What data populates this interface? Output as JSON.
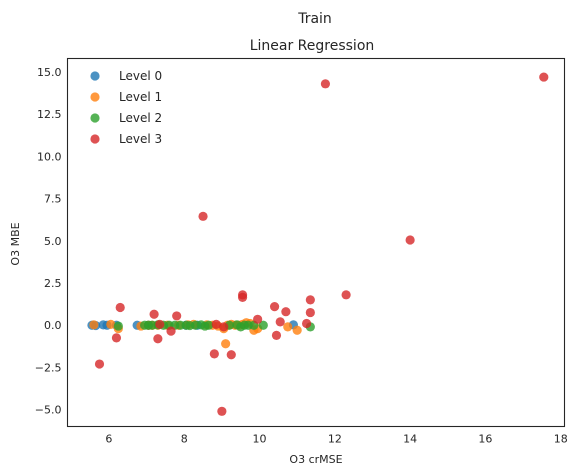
{
  "chart_data": {
    "type": "scatter",
    "suptitle": "Train",
    "title": "Linear Regression",
    "xlabel": "O3 crMSE",
    "ylabel": "O3 MBE",
    "xlim": [
      4.9,
      18.1
    ],
    "ylim": [
      -6.0,
      15.8
    ],
    "xticks": [
      6,
      8,
      10,
      12,
      14,
      16,
      18
    ],
    "yticks": [
      -5.0,
      -2.5,
      0.0,
      2.5,
      5.0,
      7.5,
      10.0,
      12.5,
      15.0
    ],
    "ytick_labels": [
      "−5.0",
      "−2.5",
      "0.0",
      "2.5",
      "5.0",
      "7.5",
      "10.0",
      "12.5",
      "15.0"
    ],
    "grid": false,
    "legend_position": "upper-left",
    "series": [
      {
        "name": "Level 0",
        "color": "#1f77b4",
        "points": [
          [
            5.55,
            0.0
          ],
          [
            5.65,
            -0.02
          ],
          [
            5.85,
            0.02
          ],
          [
            5.95,
            0.0
          ],
          [
            6.2,
            0.0
          ],
          [
            6.75,
            0.0
          ],
          [
            7.05,
            0.0
          ],
          [
            8.05,
            0.0
          ],
          [
            8.35,
            0.0
          ],
          [
            10.9,
            0.02
          ]
        ]
      },
      {
        "name": "Level 1",
        "color": "#ff7f0e",
        "points": [
          [
            5.6,
            0.02
          ],
          [
            6.05,
            0.05
          ],
          [
            6.25,
            -0.2
          ],
          [
            6.85,
            -0.05
          ],
          [
            7.05,
            0.0
          ],
          [
            7.15,
            0.0
          ],
          [
            7.3,
            0.0
          ],
          [
            7.55,
            0.0
          ],
          [
            7.85,
            0.0
          ],
          [
            8.1,
            0.02
          ],
          [
            8.25,
            0.05
          ],
          [
            8.6,
            0.02
          ],
          [
            8.75,
            0.0
          ],
          [
            8.9,
            -0.05
          ],
          [
            9.05,
            -0.2
          ],
          [
            9.1,
            -1.1
          ],
          [
            9.15,
            0.0
          ],
          [
            9.25,
            0.05
          ],
          [
            9.35,
            0.0
          ],
          [
            9.45,
            0.0
          ],
          [
            9.55,
            0.05
          ],
          [
            9.65,
            0.15
          ],
          [
            9.75,
            0.1
          ],
          [
            9.85,
            -0.3
          ],
          [
            9.95,
            -0.2
          ],
          [
            10.75,
            -0.1
          ],
          [
            11.0,
            -0.3
          ]
        ]
      },
      {
        "name": "Level 2",
        "color": "#2ca02c",
        "points": [
          [
            6.25,
            -0.05
          ],
          [
            6.95,
            0.0
          ],
          [
            7.05,
            0.0
          ],
          [
            7.15,
            0.0
          ],
          [
            7.3,
            0.02
          ],
          [
            7.45,
            0.0
          ],
          [
            7.6,
            0.0
          ],
          [
            7.75,
            0.0
          ],
          [
            7.9,
            0.0
          ],
          [
            8.05,
            0.0
          ],
          [
            8.15,
            -0.02
          ],
          [
            8.3,
            0.0
          ],
          [
            8.45,
            0.02
          ],
          [
            8.55,
            -0.05
          ],
          [
            8.65,
            0.0
          ],
          [
            9.2,
            0.0
          ],
          [
            9.4,
            0.02
          ],
          [
            9.5,
            -0.1
          ],
          [
            9.6,
            0.0
          ],
          [
            9.7,
            0.0
          ],
          [
            9.85,
            0.0
          ],
          [
            10.1,
            0.0
          ],
          [
            11.35,
            -0.1
          ]
        ]
      },
      {
        "name": "Level 3",
        "color": "#d62728",
        "points": [
          [
            5.75,
            -2.3
          ],
          [
            6.2,
            -0.75
          ],
          [
            6.3,
            1.05
          ],
          [
            7.2,
            0.65
          ],
          [
            7.3,
            -0.8
          ],
          [
            7.35,
            0.05
          ],
          [
            7.65,
            -0.35
          ],
          [
            7.8,
            0.55
          ],
          [
            8.5,
            6.45
          ],
          [
            8.8,
            -1.7
          ],
          [
            8.85,
            0.05
          ],
          [
            9.0,
            -5.1
          ],
          [
            9.05,
            -0.1
          ],
          [
            9.25,
            -1.75
          ],
          [
            9.55,
            1.8
          ],
          [
            9.55,
            1.65
          ],
          [
            9.95,
            0.35
          ],
          [
            10.4,
            1.1
          ],
          [
            10.45,
            -0.6
          ],
          [
            10.55,
            0.2
          ],
          [
            10.7,
            0.8
          ],
          [
            11.25,
            0.1
          ],
          [
            11.35,
            1.5
          ],
          [
            11.35,
            0.75
          ],
          [
            11.75,
            14.3
          ],
          [
            12.3,
            1.8
          ],
          [
            14.0,
            5.05
          ],
          [
            17.55,
            14.7
          ]
        ]
      }
    ]
  }
}
